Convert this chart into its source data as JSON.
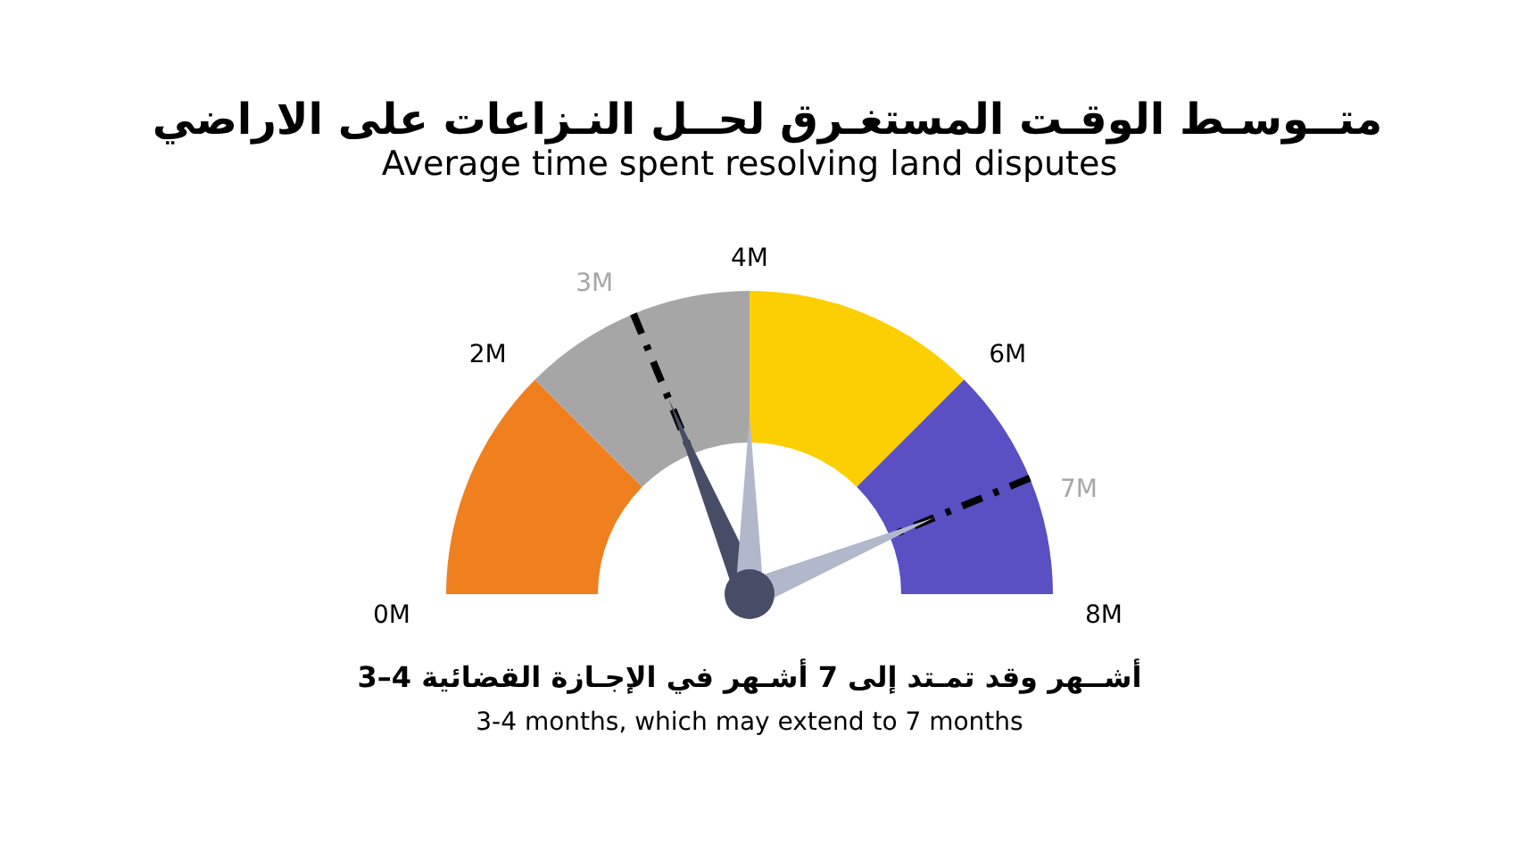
{
  "chart_data": {
    "type": "donut",
    "title": "متــوسـط الوقـت المستغـرق لحــل النـزاعات على الاراضي",
    "subtitle": "Average time spent resolving land disputes",
    "categories": [
      null,
      null,
      null,
      null
    ],
    "values": [
      25,
      25,
      25,
      25
    ],
    "colors": [
      "#f07f1e",
      "#a6a6a6",
      "#fccf02",
      "#5a50c4"
    ],
    "annotations": [
      "3–4 أشــهر وقد تمـتد إلى 7 أشـهر في الإجـازة القضائية",
      "3-4 months, which may extend to 7 months",
      "0M",
      "2M",
      "4M",
      "6M",
      "8M",
      "3M",
      "7M"
    ]
  }
}
